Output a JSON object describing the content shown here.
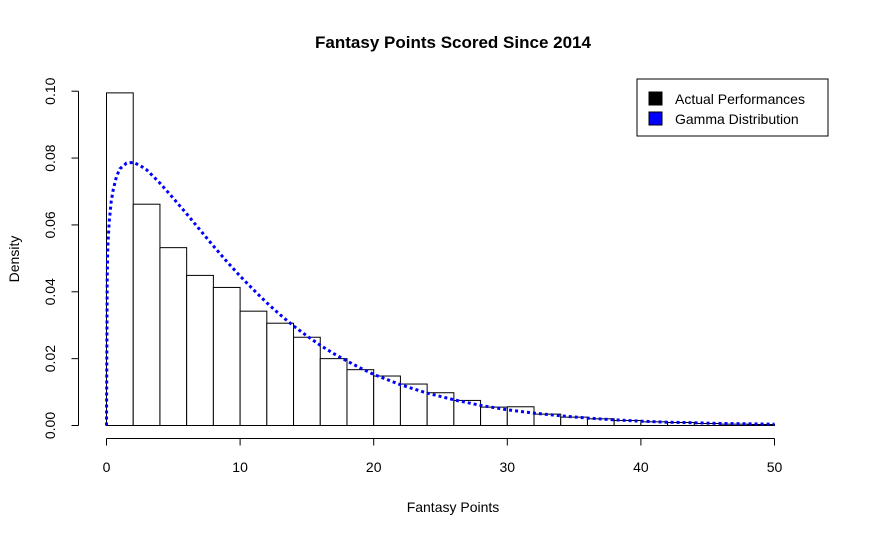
{
  "chart_data": {
    "type": "bar",
    "title": "Fantasy Points Scored Since 2014",
    "xlabel": "Fantasy Points",
    "ylabel": "Density",
    "xlim": [
      0,
      52
    ],
    "ylim": [
      0,
      0.1
    ],
    "x_ticks": [
      "0",
      "10",
      "20",
      "30",
      "40",
      "50"
    ],
    "y_ticks": [
      "0.00",
      "0.02",
      "0.04",
      "0.06",
      "0.08",
      "0.10"
    ],
    "bin_width": 2,
    "bins_start": [
      0,
      2,
      4,
      6,
      8,
      10,
      12,
      14,
      16,
      18,
      20,
      22,
      24,
      26,
      28,
      30,
      32,
      34,
      36,
      38,
      40,
      42,
      44,
      46,
      48
    ],
    "values": [
      0.0995,
      0.0662,
      0.0532,
      0.0449,
      0.0413,
      0.0342,
      0.0306,
      0.0264,
      0.02,
      0.0167,
      0.0148,
      0.0124,
      0.0098,
      0.0075,
      0.0055,
      0.0056,
      0.0034,
      0.0025,
      0.002,
      0.0015,
      0.0011,
      0.0009,
      0.0006,
      0.0004,
      0.0003
    ],
    "gamma_curve": {
      "x": [
        0,
        0.05,
        0.1,
        0.2,
        0.35,
        0.5,
        0.75,
        1,
        1.5,
        2,
        2.5,
        3,
        4,
        5,
        6,
        7,
        8,
        9,
        10,
        11,
        12,
        13,
        14,
        15,
        16,
        17,
        18,
        19,
        20,
        22,
        24,
        26,
        28,
        30,
        32,
        34,
        36,
        38,
        40,
        42,
        44,
        46,
        48,
        50
      ],
      "y": [
        0,
        0.045,
        0.0535,
        0.061,
        0.067,
        0.0705,
        0.0745,
        0.0768,
        0.0785,
        0.0787,
        0.0778,
        0.0765,
        0.0725,
        0.068,
        0.0633,
        0.0585,
        0.0537,
        0.0491,
        0.0447,
        0.0406,
        0.0367,
        0.0331,
        0.0298,
        0.0268,
        0.024,
        0.0215,
        0.0193,
        0.0172,
        0.0153,
        0.0122,
        0.0097,
        0.0077,
        0.006,
        0.0047,
        0.0037,
        0.0029,
        0.0022,
        0.0017,
        0.0013,
        0.001,
        0.0008,
        0.0006,
        0.0005,
        0.0004
      ]
    },
    "legend": {
      "position": "top-right",
      "entries": [
        {
          "label": "Actual Performances",
          "color": "#000000"
        },
        {
          "label": "Gamma Distribution",
          "color": "#0000ff"
        }
      ]
    },
    "colors": {
      "bar_fill": "#ffffff",
      "bar_stroke": "#000000",
      "curve": "#0000ff"
    }
  }
}
